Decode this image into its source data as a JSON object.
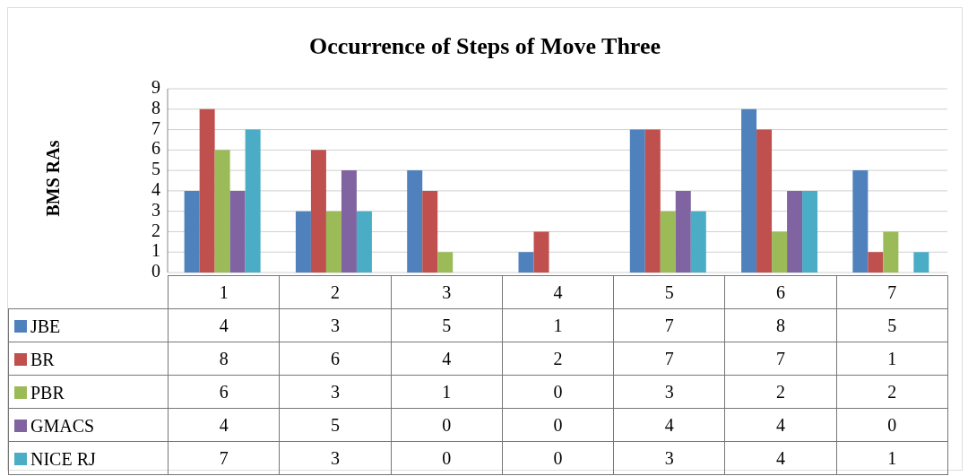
{
  "chart_data": {
    "type": "bar",
    "title": "Occurrence of Steps of Move Three",
    "ylabel": "BMS RAs",
    "categories": [
      "1",
      "2",
      "3",
      "4",
      "5",
      "6",
      "7"
    ],
    "series": [
      {
        "name": "JBE",
        "color": "#4f81bd",
        "values": [
          4,
          3,
          5,
          1,
          7,
          8,
          5
        ]
      },
      {
        "name": "BR",
        "color": "#c0504d",
        "values": [
          8,
          6,
          4,
          2,
          7,
          7,
          1
        ]
      },
      {
        "name": "PBR",
        "color": "#9bbb59",
        "values": [
          6,
          3,
          1,
          0,
          3,
          2,
          2
        ]
      },
      {
        "name": "GMACS",
        "color": "#8064a2",
        "values": [
          4,
          5,
          0,
          0,
          4,
          4,
          0
        ]
      },
      {
        "name": "NICE RJ",
        "color": "#4bacc6",
        "values": [
          7,
          3,
          0,
          0,
          3,
          4,
          1
        ]
      }
    ],
    "ylim": [
      0,
      9
    ],
    "yticks": [
      0,
      1,
      2,
      3,
      4,
      5,
      6,
      7,
      8,
      9
    ],
    "grid": "y",
    "legend": "bottom",
    "data_labels": true
  }
}
